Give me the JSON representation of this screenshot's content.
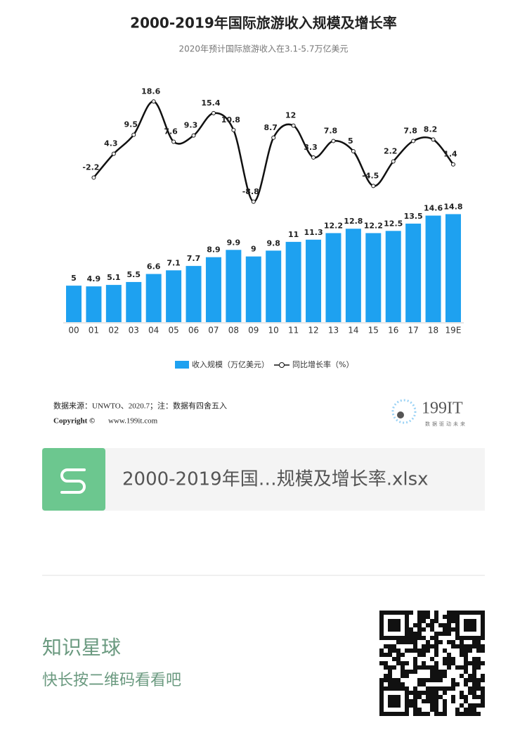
{
  "chart_data": {
    "type": "bar",
    "title": "2000-2019年国际旅游收入规模及增长率",
    "subtitle": "2020年预计国际旅游收入在3.1-5.7万亿美元",
    "categories": [
      "00",
      "01",
      "02",
      "03",
      "04",
      "05",
      "06",
      "07",
      "08",
      "09",
      "10",
      "11",
      "12",
      "13",
      "14",
      "15",
      "16",
      "17",
      "18",
      "19E"
    ],
    "series": [
      {
        "name": "收入规模（万亿美元）",
        "type": "bar",
        "color": "#1ea1f0",
        "values": [
          5,
          4.9,
          5.1,
          5.5,
          6.6,
          7.1,
          7.7,
          8.9,
          9.9,
          9,
          9.8,
          11,
          11.3,
          12.2,
          12.8,
          12.2,
          12.5,
          13.5,
          14.6,
          14.8
        ]
      },
      {
        "name": "同比增长率（%）",
        "type": "line",
        "axis": "y2",
        "color": "#111111",
        "values": [
          null,
          -2.2,
          4.3,
          9.5,
          18.6,
          7.6,
          9.3,
          15.4,
          10.8,
          -8.8,
          8.7,
          12,
          3.3,
          7.8,
          5,
          -4.5,
          2.2,
          7.8,
          8.2,
          1.4
        ]
      }
    ],
    "ylim": [
      0,
      16
    ],
    "y2lim": [
      -10,
      20
    ]
  },
  "source": {
    "note": "数据来源：UNWTO、2020.7；注：数据有四舍五入",
    "copyright": "Copyright ©",
    "website": "www.199it.com",
    "logo": "199IT",
    "slogan": "数据驱动未来"
  },
  "file": {
    "name": "2000-2019年国…规模及增长率.xlsx"
  },
  "footer": {
    "title": "知识星球",
    "subtitle": "快长按二维码看看吧"
  }
}
